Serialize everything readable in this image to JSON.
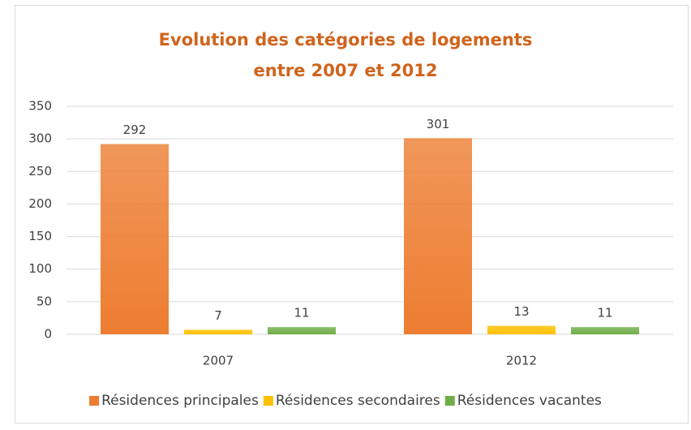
{
  "chart_data": {
    "type": "bar",
    "title": "Evolution des catégories de logements entre 2007 et 2012",
    "categories": [
      "2007",
      "2012"
    ],
    "series": [
      {
        "name": "Résidences principales",
        "color": "#ed7d31",
        "values": [
          292,
          301
        ]
      },
      {
        "name": "Résidences secondaires",
        "color": "#ffc000",
        "values": [
          7,
          13
        ]
      },
      {
        "name": "Résidences vacantes",
        "color": "#70ad47",
        "values": [
          11,
          11
        ]
      }
    ],
    "ylim": [
      0,
      350
    ],
    "yticks": [
      0,
      50,
      100,
      150,
      200,
      250,
      300,
      350
    ],
    "grid": true,
    "legend": "bottom"
  }
}
